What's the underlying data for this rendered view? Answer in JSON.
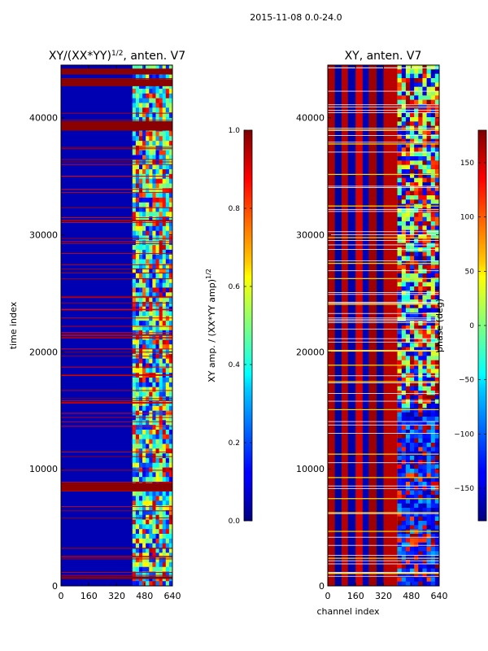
{
  "suptitle": "2015-11-08 0.0-24.0",
  "chart_data": [
    {
      "type": "heatmap",
      "title": "XY/(XX*YY)",
      "title_exponent": "1/2",
      "title_suffix": ", anten. V7",
      "xlabel": "",
      "ylabel": "time index",
      "xlim": [
        0,
        640
      ],
      "ylim": [
        0,
        44500
      ],
      "xticks": [
        "0",
        "160",
        "320",
        "480",
        "640"
      ],
      "yticks": [
        "0",
        "10000",
        "20000",
        "30000",
        "40000"
      ],
      "ytick_values": [
        0,
        10000,
        20000,
        30000,
        40000
      ],
      "colorbar": {
        "label": "XY amp. / (XX*YY amp)",
        "label_exponent": "1/2",
        "range": [
          0.0,
          1.0
        ],
        "ticks": [
          "0.0",
          "0.2",
          "0.4",
          "0.6",
          "0.8",
          "1.0"
        ],
        "tick_values": [
          0.0,
          0.2,
          0.4,
          0.6,
          0.8,
          1.0
        ]
      },
      "background_value": 0.05,
      "high_channel_band": [
        410,
        640
      ],
      "saturated_rows": [
        [
          38900,
          39700
        ],
        [
          42700,
          43300
        ],
        [
          43700,
          44200
        ],
        [
          8100,
          8800
        ],
        [
          600,
          800
        ]
      ]
    },
    {
      "type": "heatmap",
      "title": "XY, anten. V7",
      "xlabel": "channel index",
      "ylabel": "",
      "xlim": [
        0,
        640
      ],
      "ylim": [
        0,
        44500
      ],
      "xticks": [
        "0",
        "160",
        "320",
        "480",
        "640"
      ],
      "yticks": [
        "0",
        "10000",
        "20000",
        "30000",
        "40000"
      ],
      "ytick_values": [
        0,
        10000,
        20000,
        30000,
        40000
      ],
      "colorbar": {
        "label": "phase (deg)",
        "range": [
          -180,
          180
        ],
        "ticks": [
          "−150",
          "−100",
          "−50",
          "0",
          "50",
          "100",
          "150"
        ],
        "tick_values": [
          -150,
          -100,
          -50,
          0,
          50,
          100,
          150
        ]
      },
      "stripes_deg": [
        {
          "x": [
            0,
            40
          ],
          "value": 165
        },
        {
          "x": [
            40,
            80
          ],
          "value": -170
        },
        {
          "x": [
            80,
            115
          ],
          "value": 160
        },
        {
          "x": [
            115,
            160
          ],
          "value": -165
        },
        {
          "x": [
            160,
            200
          ],
          "value": 150
        },
        {
          "x": [
            200,
            235
          ],
          "value": -160
        },
        {
          "x": [
            235,
            280
          ],
          "value": 170
        },
        {
          "x": [
            280,
            320
          ],
          "value": -170
        },
        {
          "x": [
            320,
            400
          ],
          "value": 160
        },
        {
          "x": [
            400,
            640
          ],
          "value": 40
        }
      ],
      "yellow_rows": [
        39000,
        37800,
        35200,
        32500,
        29800,
        27600,
        26300,
        24100,
        20100,
        18900,
        17500,
        15100,
        11300,
        9300,
        7500,
        6300,
        4700,
        2400,
        1100
      ]
    }
  ]
}
